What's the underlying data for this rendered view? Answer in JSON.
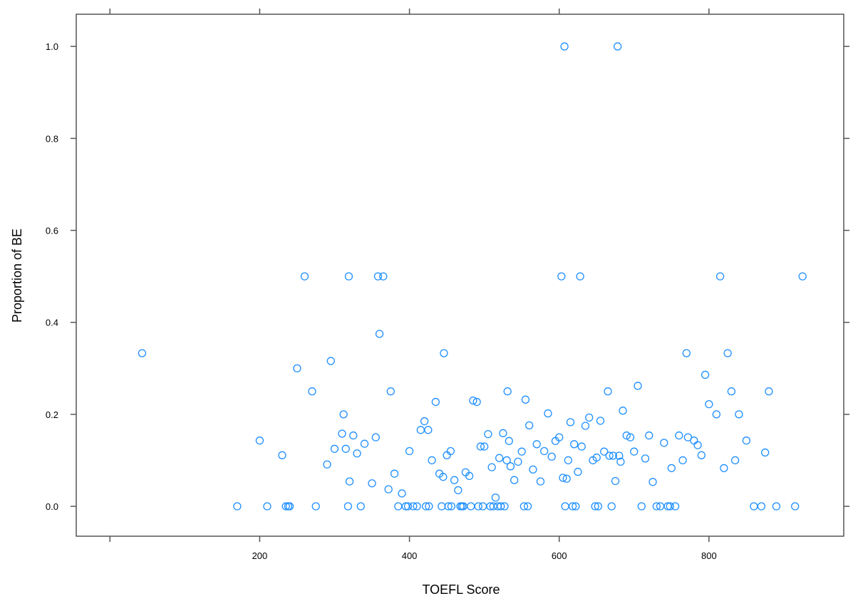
{
  "chart_data": {
    "type": "scatter",
    "title": "",
    "xlabel": "TOEFL Score",
    "ylabel": "Proportion of BE",
    "xlim": [
      -45,
      980
    ],
    "ylim": [
      -0.065,
      1.07
    ],
    "x_ticks": [
      200,
      400,
      600,
      800
    ],
    "x_tick_labels": [
      "200",
      "400",
      "600",
      "800"
    ],
    "y_ticks": [
      0.0,
      0.2,
      0.4,
      0.6,
      0.8,
      1.0
    ],
    "y_tick_labels": [
      "0.0",
      "0.2",
      "0.4",
      "0.6",
      "0.8",
      "1.0"
    ],
    "grid": false,
    "marker_color": "#1f8fff",
    "points": [
      [
        43,
        0.333
      ],
      [
        170,
        0
      ],
      [
        200,
        0.143
      ],
      [
        210,
        0
      ],
      [
        230,
        0.111
      ],
      [
        235,
        0
      ],
      [
        238,
        0
      ],
      [
        240,
        0
      ],
      [
        250,
        0.3
      ],
      [
        260,
        0.5
      ],
      [
        270,
        0.25
      ],
      [
        275,
        0
      ],
      [
        290,
        0.091
      ],
      [
        295,
        0.316
      ],
      [
        300,
        0.125
      ],
      [
        310,
        0.158
      ],
      [
        312,
        0.2
      ],
      [
        315,
        0.125
      ],
      [
        318,
        0
      ],
      [
        319,
        0.5
      ],
      [
        320,
        0.054
      ],
      [
        325,
        0.154
      ],
      [
        330,
        0.115
      ],
      [
        335,
        0
      ],
      [
        340,
        0.136
      ],
      [
        350,
        0.05
      ],
      [
        355,
        0.15
      ],
      [
        358,
        0.5
      ],
      [
        360,
        0.375
      ],
      [
        365,
        0.5
      ],
      [
        372,
        0.037
      ],
      [
        375,
        0.25
      ],
      [
        380,
        0.071
      ],
      [
        385,
        0
      ],
      [
        390,
        0.028
      ],
      [
        395,
        0
      ],
      [
        398,
        0
      ],
      [
        400,
        0.12
      ],
      [
        405,
        0
      ],
      [
        410,
        0
      ],
      [
        415,
        0.166
      ],
      [
        420,
        0.185
      ],
      [
        422,
        0
      ],
      [
        425,
        0.166
      ],
      [
        426,
        0
      ],
      [
        430,
        0.1
      ],
      [
        435,
        0.227
      ],
      [
        440,
        0.071
      ],
      [
        443,
        0
      ],
      [
        445,
        0.064
      ],
      [
        446,
        0.333
      ],
      [
        450,
        0.111
      ],
      [
        452,
        0
      ],
      [
        455,
        0.12
      ],
      [
        456,
        0
      ],
      [
        460,
        0.057
      ],
      [
        465,
        0.035
      ],
      [
        468,
        0
      ],
      [
        470,
        0
      ],
      [
        472,
        0
      ],
      [
        475,
        0.074
      ],
      [
        480,
        0.066
      ],
      [
        482,
        0
      ],
      [
        485,
        0.23
      ],
      [
        490,
        0.227
      ],
      [
        492,
        0
      ],
      [
        495,
        0.13
      ],
      [
        498,
        0
      ],
      [
        500,
        0.13
      ],
      [
        505,
        0.157
      ],
      [
        508,
        0
      ],
      [
        510,
        0.085
      ],
      [
        512,
        0
      ],
      [
        515,
        0.019
      ],
      [
        518,
        0
      ],
      [
        520,
        0.105
      ],
      [
        522,
        0
      ],
      [
        525,
        0.159
      ],
      [
        527,
        0
      ],
      [
        530,
        0.1
      ],
      [
        531,
        0.25
      ],
      [
        533,
        0.142
      ],
      [
        535,
        0.087
      ],
      [
        540,
        0.057
      ],
      [
        545,
        0.097
      ],
      [
        550,
        0.119
      ],
      [
        553,
        0
      ],
      [
        555,
        0.232
      ],
      [
        558,
        0
      ],
      [
        560,
        0.176
      ],
      [
        565,
        0.08
      ],
      [
        570,
        0.135
      ],
      [
        575,
        0.054
      ],
      [
        580,
        0.12
      ],
      [
        585,
        0.202
      ],
      [
        590,
        0.108
      ],
      [
        595,
        0.142
      ],
      [
        600,
        0.15
      ],
      [
        603,
        0.5
      ],
      [
        605,
        0.062
      ],
      [
        607,
        1.0
      ],
      [
        608,
        0
      ],
      [
        610,
        0.06
      ],
      [
        612,
        0.1
      ],
      [
        615,
        0.183
      ],
      [
        618,
        0
      ],
      [
        620,
        0.135
      ],
      [
        622,
        0
      ],
      [
        625,
        0.075
      ],
      [
        628,
        0.5
      ],
      [
        630,
        0.13
      ],
      [
        635,
        0.175
      ],
      [
        640,
        0.193
      ],
      [
        645,
        0.1
      ],
      [
        648,
        0
      ],
      [
        650,
        0.106
      ],
      [
        652,
        0
      ],
      [
        655,
        0.186
      ],
      [
        660,
        0.119
      ],
      [
        665,
        0.25
      ],
      [
        667,
        0.11
      ],
      [
        670,
        0
      ],
      [
        672,
        0.11
      ],
      [
        675,
        0.055
      ],
      [
        678,
        1.0
      ],
      [
        680,
        0.11
      ],
      [
        682,
        0.097
      ],
      [
        685,
        0.208
      ],
      [
        690,
        0.154
      ],
      [
        695,
        0.15
      ],
      [
        700,
        0.119
      ],
      [
        705,
        0.262
      ],
      [
        710,
        0
      ],
      [
        715,
        0.104
      ],
      [
        720,
        0.154
      ],
      [
        725,
        0.053
      ],
      [
        730,
        0
      ],
      [
        735,
        0
      ],
      [
        740,
        0.138
      ],
      [
        745,
        0
      ],
      [
        748,
        0
      ],
      [
        750,
        0.083
      ],
      [
        755,
        0
      ],
      [
        760,
        0.154
      ],
      [
        765,
        0.1
      ],
      [
        770,
        0.333
      ],
      [
        772,
        0.15
      ],
      [
        780,
        0.143
      ],
      [
        785,
        0.133
      ],
      [
        790,
        0.111
      ],
      [
        795,
        0.286
      ],
      [
        800,
        0.222
      ],
      [
        810,
        0.2
      ],
      [
        815,
        0.5
      ],
      [
        820,
        0.083
      ],
      [
        825,
        0.333
      ],
      [
        830,
        0.25
      ],
      [
        835,
        0.1
      ],
      [
        840,
        0.2
      ],
      [
        850,
        0.143
      ],
      [
        860,
        0
      ],
      [
        870,
        0
      ],
      [
        875,
        0.117
      ],
      [
        880,
        0.25
      ],
      [
        890,
        0
      ],
      [
        915,
        0
      ],
      [
        925,
        0.5
      ]
    ]
  }
}
